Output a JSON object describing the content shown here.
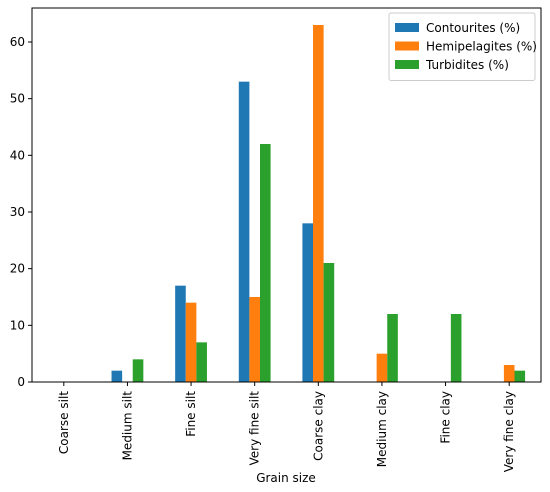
{
  "chart_data": {
    "type": "bar",
    "xlabel": "Grain size",
    "ylabel": "",
    "ylim": [
      0,
      66
    ],
    "yticks": [
      0,
      10,
      20,
      30,
      40,
      50,
      60
    ],
    "categories": [
      "Coarse silt",
      "Medium silt",
      "Fine silt",
      "Very fine silt",
      "Coarse clay",
      "Medium clay",
      "Fine clay",
      "Very fine clay"
    ],
    "series": [
      {
        "name": "Contourites (%)",
        "color": "#1f77b4",
        "values": [
          0,
          2,
          17,
          53,
          28,
          0,
          0,
          0
        ]
      },
      {
        "name": "Hemipelagites (%)",
        "color": "#ff7f0e",
        "values": [
          0,
          0,
          14,
          15,
          63,
          5,
          0,
          3
        ]
      },
      {
        "name": "Turbidites (%)",
        "color": "#2ca02c",
        "values": [
          0,
          4,
          7,
          42,
          21,
          12,
          12,
          2
        ]
      }
    ],
    "grid": false,
    "legend_position": "top-right"
  }
}
